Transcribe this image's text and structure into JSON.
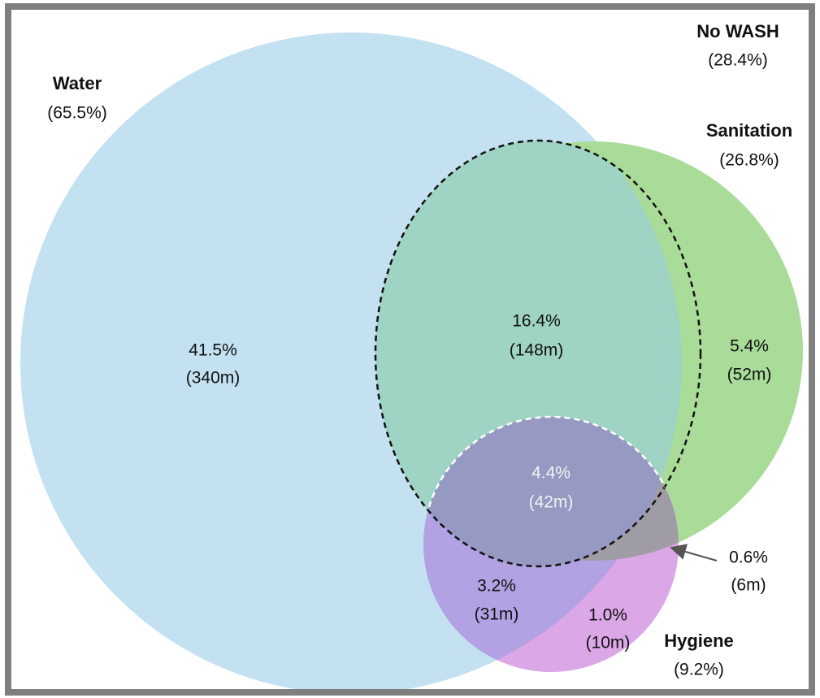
{
  "sets": [
    {
      "name": "Water",
      "share": "(65.5%)"
    },
    {
      "name": "Sanitation",
      "share": "(26.8%)"
    },
    {
      "name": "Hygiene",
      "share": "(9.2%)"
    },
    {
      "name": "No WASH",
      "share": "(28.4%)"
    }
  ],
  "regions": [
    {
      "percent": "41.5%",
      "count": "(340m)"
    },
    {
      "percent": "16.4%",
      "count": "(148m)"
    },
    {
      "percent": "5.4%",
      "count": "(52m)"
    },
    {
      "percent": "4.4%",
      "count": "(42m)"
    },
    {
      "percent": "3.2%",
      "count": "(31m)"
    },
    {
      "percent": "1.0%",
      "count": "(10m)"
    },
    {
      "percent": "0.6%",
      "count": "(6m)"
    }
  ]
}
